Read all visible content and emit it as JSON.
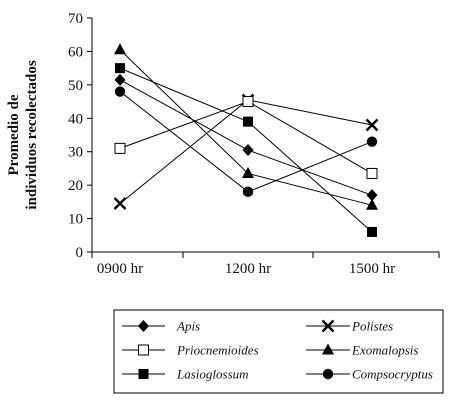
{
  "chart_data": {
    "type": "line",
    "title": "",
    "xlabel": "",
    "ylabel": "Promedio de individuos recolectados",
    "ylabel_lines": [
      "Promedio de",
      "individuos recolectados"
    ],
    "categories": [
      "0900 hr",
      "1200 hr",
      "1500 hr"
    ],
    "ylim": [
      0,
      70
    ],
    "yticks": [
      0,
      10,
      20,
      30,
      40,
      50,
      60,
      70
    ],
    "grid": false,
    "legend_position": "bottom",
    "series": [
      {
        "name": "Apis",
        "marker": "diamond",
        "values": [
          51.5,
          30.5,
          17
        ]
      },
      {
        "name": "Polistes",
        "marker": "x",
        "values": [
          14.5,
          45.5,
          38
        ]
      },
      {
        "name": "Priocnemioides",
        "marker": "open-square",
        "values": [
          31,
          45,
          23.5
        ]
      },
      {
        "name": "Exomalopsis",
        "marker": "triangle",
        "values": [
          60.5,
          23.5,
          14
        ]
      },
      {
        "name": "Lasioglossum",
        "marker": "square",
        "values": [
          55,
          39,
          6
        ]
      },
      {
        "name": "Compsocryptus",
        "marker": "circle",
        "values": [
          48,
          18,
          33
        ]
      }
    ]
  }
}
